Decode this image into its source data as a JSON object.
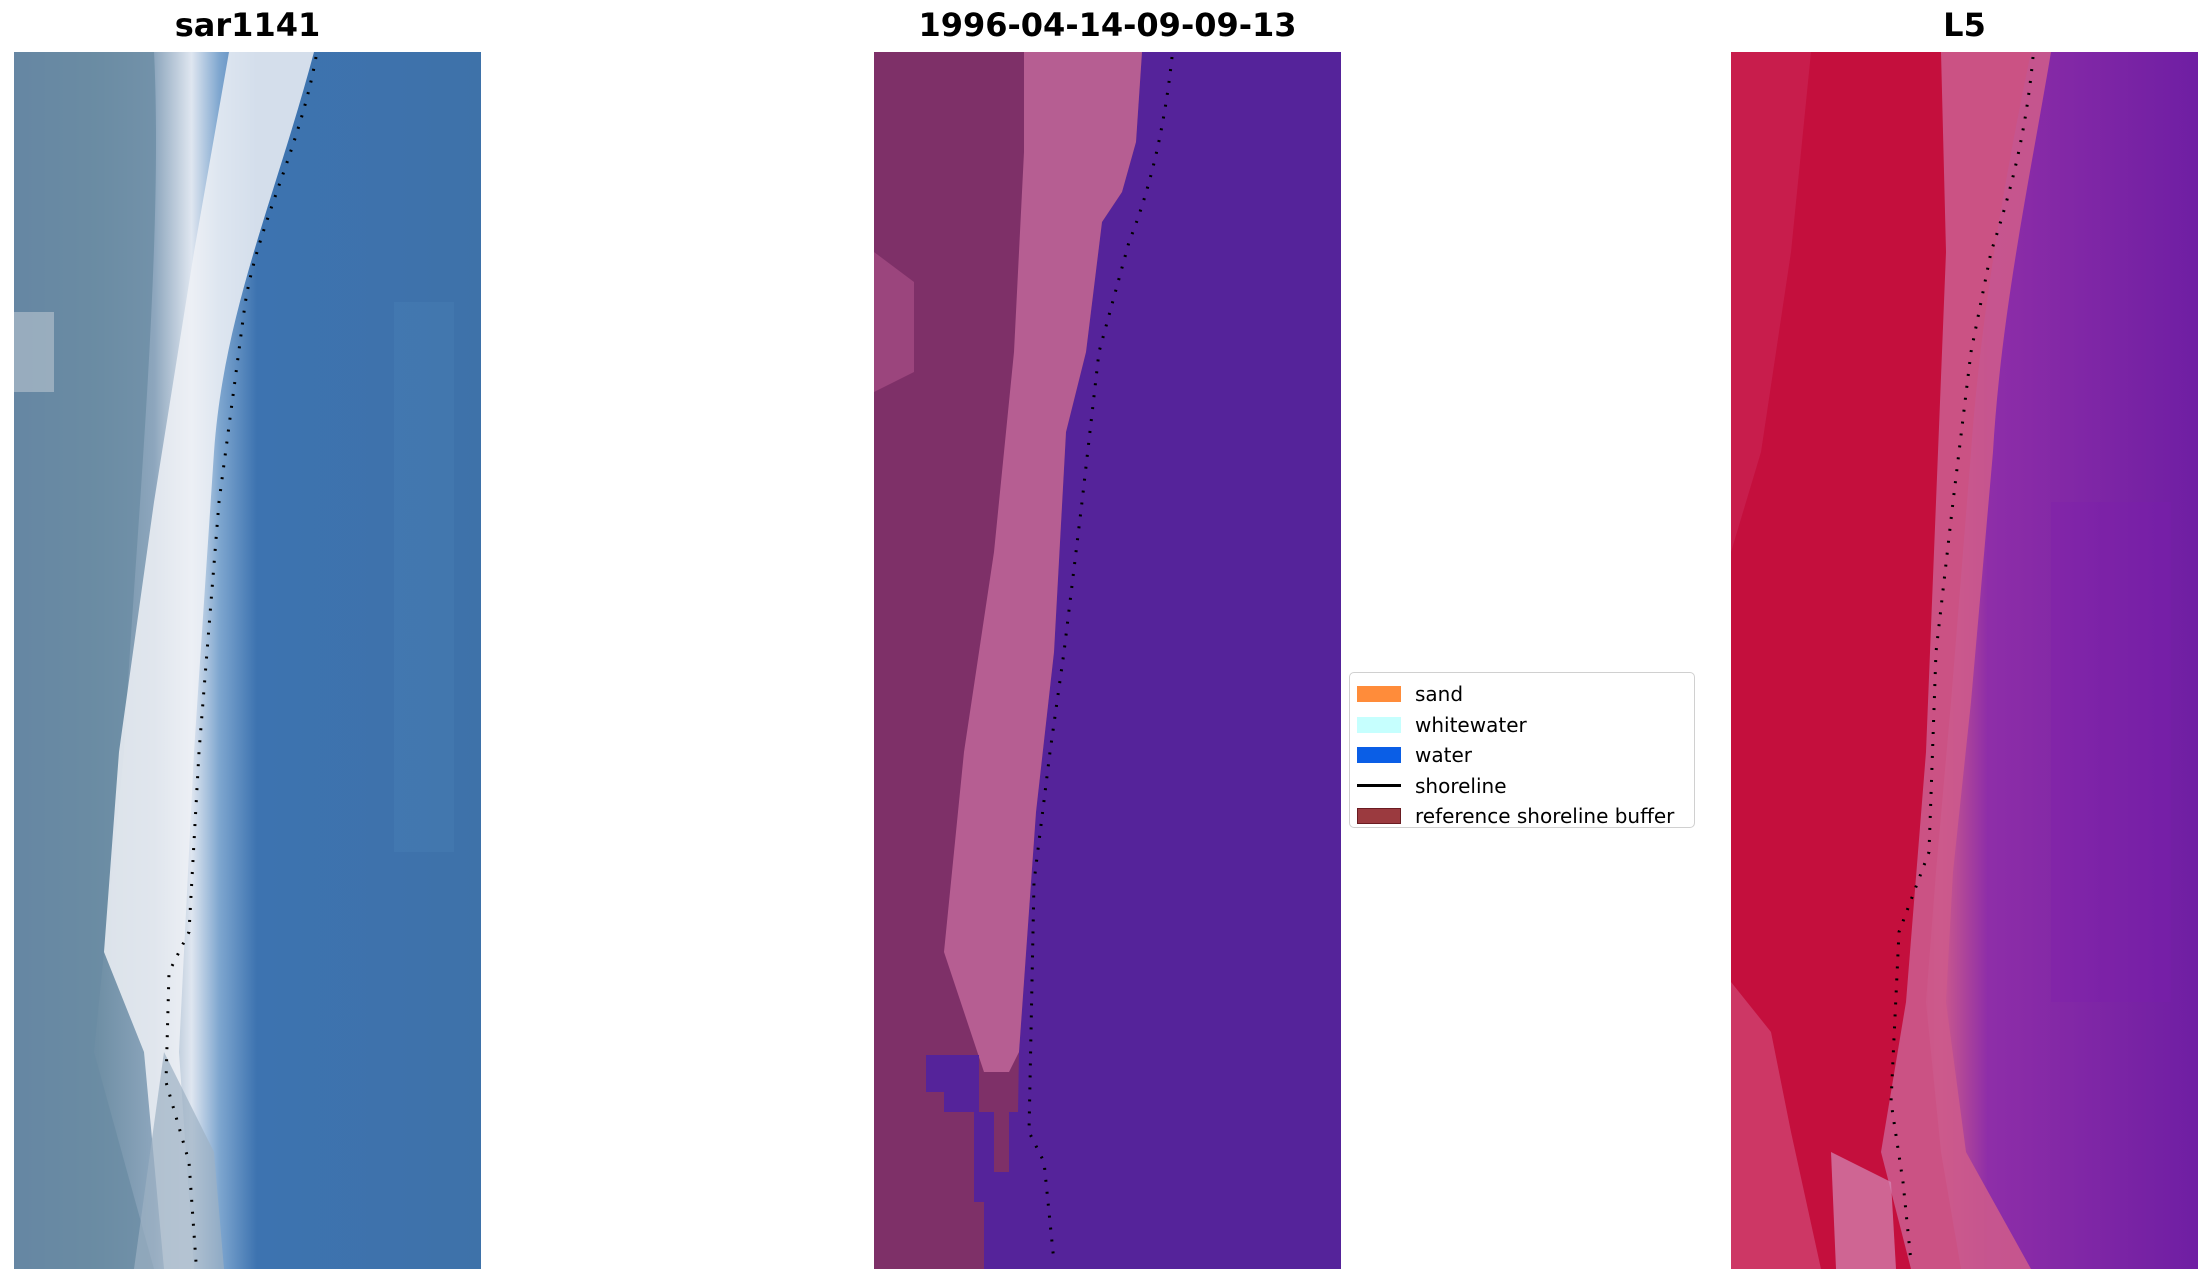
{
  "panels": [
    {
      "title": "sar1141"
    },
    {
      "title": "1996-04-14-09-09-13"
    },
    {
      "title": "L5"
    }
  ],
  "legend": {
    "items": [
      {
        "label": "sand",
        "color": "#ff8c3a",
        "kind": "patch"
      },
      {
        "label": "whitewater",
        "color": "#c6fffe",
        "kind": "patch"
      },
      {
        "label": "water",
        "color": "#0a5ee6",
        "kind": "patch"
      },
      {
        "label": "shoreline",
        "color": "#000000",
        "kind": "line"
      },
      {
        "label": "reference shoreline buffer",
        "color": "#9b3a3f",
        "kind": "patch"
      }
    ]
  },
  "colors": {
    "rgb_water": "#3b6fa8",
    "rgb_land": "#6f8fa6",
    "rgb_whitewater": "#eef1f6",
    "class_water": "#55239a",
    "class_land": "#7e3068",
    "class_sand": "#b65e92",
    "index_land": "#c4103e",
    "index_transition": "#cc5a8c",
    "index_water": "#7a22a0"
  }
}
